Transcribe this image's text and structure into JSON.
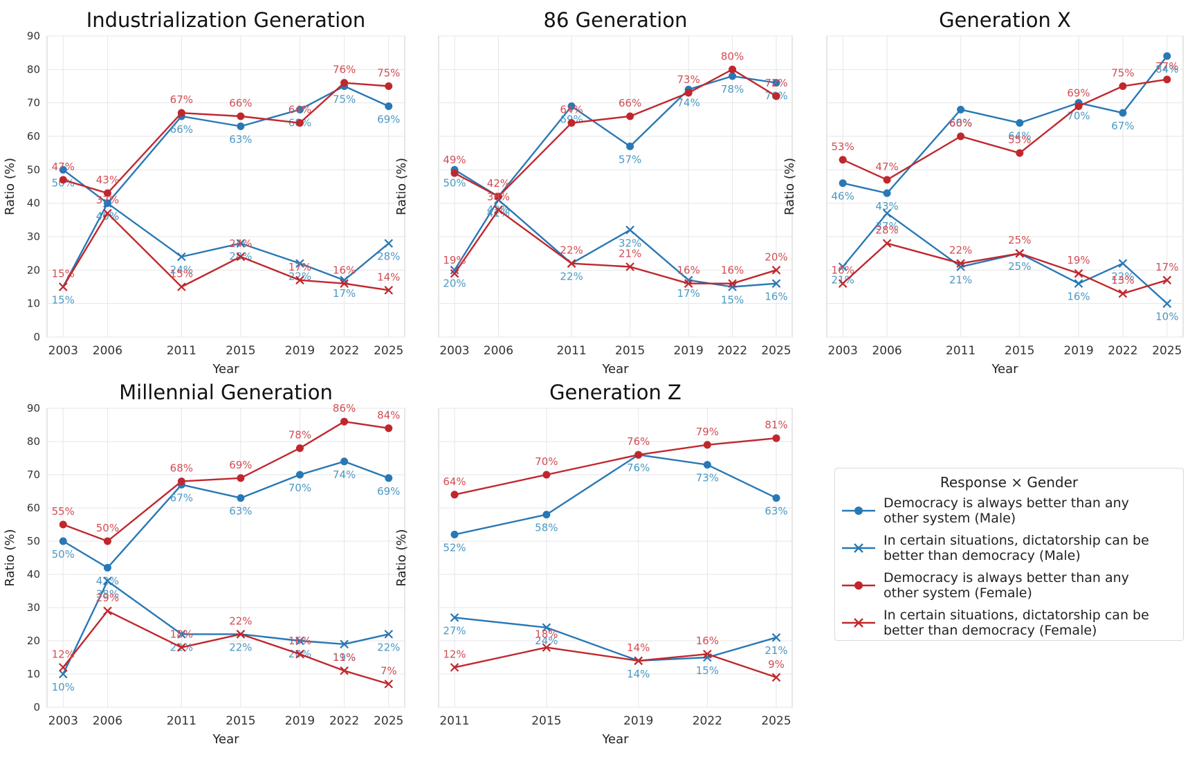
{
  "colors": {
    "blue": "#2878b5",
    "blue_label": "#4a98c4",
    "red": "#c0272d",
    "red_label": "#d24c54",
    "grid": "#e6e6e6",
    "axis": "#cccccc"
  },
  "legend": {
    "title": "Response × Gender",
    "items": [
      {
        "label": "Democracy is always better than any other system (Male)",
        "color": "#2878b5",
        "marker": "circle"
      },
      {
        "label": "In certain situations, dictatorship can be better than democracy (Male)",
        "color": "#2878b5",
        "marker": "x"
      },
      {
        "label": "Democracy is always better than any other system (Female)",
        "color": "#c0272d",
        "marker": "circle"
      },
      {
        "label": "In certain situations, dictatorship can be better than democracy (Female)",
        "color": "#c0272d",
        "marker": "x"
      }
    ]
  },
  "chart_data": [
    {
      "type": "line",
      "title": "Industrialization Generation",
      "xlabel": "Year",
      "ylabel": "Ratio (%)",
      "x": [
        2003,
        2006,
        2011,
        2015,
        2019,
        2022,
        2025
      ],
      "ylim": [
        0,
        90
      ],
      "yticks": [
        0,
        10,
        20,
        30,
        40,
        50,
        60,
        70,
        80,
        90
      ],
      "show_ytick_labels": true,
      "grid": true,
      "series": [
        {
          "name": "Democracy is always better than any other system (Male)",
          "marker": "circle",
          "color": "#2878b5",
          "values": [
            50,
            40,
            66,
            63,
            68,
            75,
            69
          ]
        },
        {
          "name": "In certain situations, dictatorship can be better than democracy (Male)",
          "marker": "x",
          "color": "#2878b5",
          "values": [
            15,
            40,
            24,
            28,
            22,
            17,
            28
          ]
        },
        {
          "name": "Democracy is always better than any other system (Female)",
          "marker": "circle",
          "color": "#c0272d",
          "values": [
            47,
            43,
            67,
            66,
            64,
            76,
            75
          ]
        },
        {
          "name": "In certain situations, dictatorship can be better than democracy (Female)",
          "marker": "x",
          "color": "#c0272d",
          "values": [
            15,
            37,
            15,
            24,
            17,
            16,
            14
          ]
        }
      ]
    },
    {
      "type": "line",
      "title": "86 Generation",
      "xlabel": "Year",
      "ylabel": "Ratio (%)",
      "x": [
        2003,
        2006,
        2011,
        2015,
        2019,
        2022,
        2025
      ],
      "ylim": [
        0,
        90
      ],
      "yticks": [
        0,
        10,
        20,
        30,
        40,
        50,
        60,
        70,
        80,
        90
      ],
      "show_ytick_labels": false,
      "grid": true,
      "series": [
        {
          "name": "Democracy is always better than any other system (Male)",
          "marker": "circle",
          "color": "#2878b5",
          "values": [
            50,
            42,
            69,
            57,
            74,
            78,
            76
          ]
        },
        {
          "name": "In certain situations, dictatorship can be better than democracy (Male)",
          "marker": "x",
          "color": "#2878b5",
          "values": [
            20,
            41,
            22,
            32,
            17,
            15,
            16
          ]
        },
        {
          "name": "Democracy is always better than any other system (Female)",
          "marker": "circle",
          "color": "#c0272d",
          "values": [
            49,
            42,
            64,
            66,
            73,
            80,
            72
          ]
        },
        {
          "name": "In certain situations, dictatorship can be better than democracy (Female)",
          "marker": "x",
          "color": "#c0272d",
          "values": [
            19,
            38,
            22,
            21,
            16,
            16,
            20
          ]
        }
      ]
    },
    {
      "type": "line",
      "title": "Generation X",
      "xlabel": "Year",
      "ylabel": "Ratio (%)",
      "x": [
        2003,
        2006,
        2011,
        2015,
        2019,
        2022,
        2025
      ],
      "ylim": [
        0,
        90
      ],
      "yticks": [
        0,
        10,
        20,
        30,
        40,
        50,
        60,
        70,
        80,
        90
      ],
      "show_ytick_labels": false,
      "grid": true,
      "series": [
        {
          "name": "Democracy is always better than any other system (Male)",
          "marker": "circle",
          "color": "#2878b5",
          "values": [
            46,
            43,
            68,
            64,
            70,
            67,
            84
          ]
        },
        {
          "name": "In certain situations, dictatorship can be better than democracy (Male)",
          "marker": "x",
          "color": "#2878b5",
          "values": [
            21,
            37,
            21,
            25,
            16,
            22,
            10
          ]
        },
        {
          "name": "Democracy is always better than any other system (Female)",
          "marker": "circle",
          "color": "#c0272d",
          "values": [
            53,
            47,
            60,
            55,
            69,
            75,
            77
          ]
        },
        {
          "name": "In certain situations, dictatorship can be better than democracy (Female)",
          "marker": "x",
          "color": "#c0272d",
          "values": [
            16,
            28,
            22,
            25,
            19,
            13,
            17
          ]
        }
      ]
    },
    {
      "type": "line",
      "title": "Millennial Generation",
      "xlabel": "Year",
      "ylabel": "Ratio (%)",
      "x": [
        2003,
        2006,
        2011,
        2015,
        2019,
        2022,
        2025
      ],
      "ylim": [
        0,
        90
      ],
      "yticks": [
        0,
        10,
        20,
        30,
        40,
        50,
        60,
        70,
        80,
        90
      ],
      "show_ytick_labels": true,
      "grid": true,
      "series": [
        {
          "name": "Democracy is always better than any other system (Male)",
          "marker": "circle",
          "color": "#2878b5",
          "values": [
            50,
            42,
            67,
            63,
            70,
            74,
            69
          ]
        },
        {
          "name": "In certain situations, dictatorship can be better than democracy (Male)",
          "marker": "x",
          "color": "#2878b5",
          "values": [
            10,
            38,
            22,
            22,
            20,
            19,
            22
          ]
        },
        {
          "name": "Democracy is always better than any other system (Female)",
          "marker": "circle",
          "color": "#c0272d",
          "values": [
            55,
            50,
            68,
            69,
            78,
            86,
            84
          ]
        },
        {
          "name": "In certain situations, dictatorship can be better than democracy (Female)",
          "marker": "x",
          "color": "#c0272d",
          "values": [
            12,
            29,
            18,
            22,
            16,
            11,
            7
          ]
        }
      ]
    },
    {
      "type": "line",
      "title": "Generation Z",
      "xlabel": "Year",
      "ylabel": "Ratio (%)",
      "x": [
        2011,
        2015,
        2019,
        2022,
        2025
      ],
      "ylim": [
        0,
        90
      ],
      "yticks": [
        0,
        10,
        20,
        30,
        40,
        50,
        60,
        70,
        80,
        90
      ],
      "show_ytick_labels": false,
      "grid": true,
      "series": [
        {
          "name": "Democracy is always better than any other system (Male)",
          "marker": "circle",
          "color": "#2878b5",
          "values": [
            52,
            58,
            76,
            73,
            63
          ]
        },
        {
          "name": "In certain situations, dictatorship can be better than democracy (Male)",
          "marker": "x",
          "color": "#2878b5",
          "values": [
            27,
            24,
            14,
            15,
            21
          ]
        },
        {
          "name": "Democracy is always better than any other system (Female)",
          "marker": "circle",
          "color": "#c0272d",
          "values": [
            64,
            70,
            76,
            79,
            81
          ]
        },
        {
          "name": "In certain situations, dictatorship can be better than democracy (Female)",
          "marker": "x",
          "color": "#c0272d",
          "values": [
            12,
            18,
            14,
            16,
            9
          ]
        }
      ]
    }
  ]
}
